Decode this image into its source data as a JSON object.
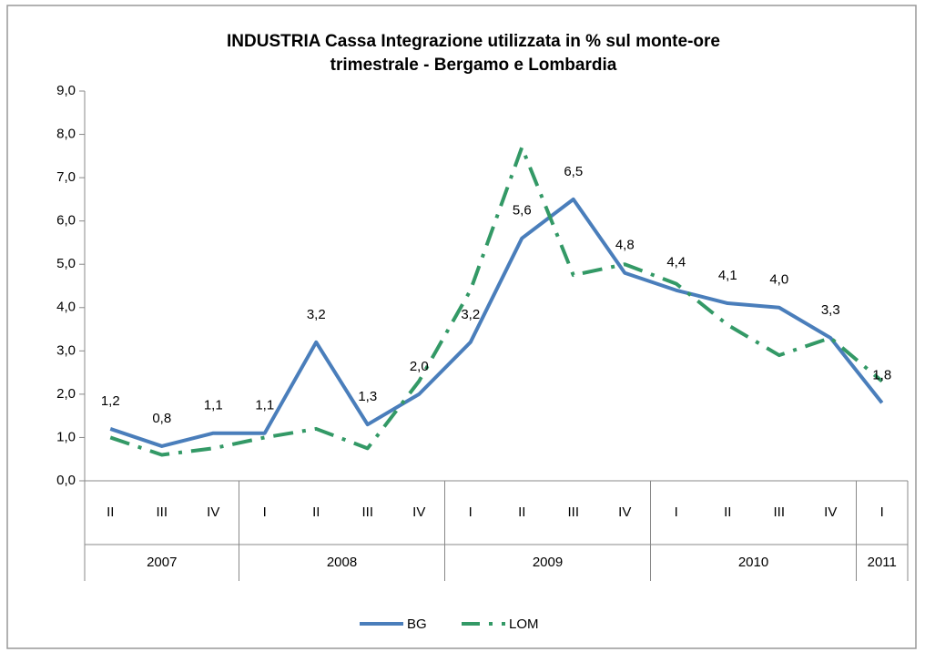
{
  "chart_data": {
    "type": "line",
    "title": [
      "INDUSTRIA  Cassa Integrazione utilizzata in % sul monte-ore",
      "trimestrale - Bergamo e Lombardia"
    ],
    "categories": [
      "II",
      "III",
      "IV",
      "I",
      "II",
      "III",
      "IV",
      "I",
      "II",
      "III",
      "IV",
      "I",
      "II",
      "III",
      "IV",
      "I"
    ],
    "year_groups": [
      {
        "label": "2007",
        "count": 3
      },
      {
        "label": "2008",
        "count": 4
      },
      {
        "label": "2009",
        "count": 4
      },
      {
        "label": "2010",
        "count": 4
      },
      {
        "label": "2011",
        "count": 1
      }
    ],
    "series": [
      {
        "name": "BG",
        "color": "#4a7ebb",
        "dash": "solid",
        "values": [
          1.2,
          0.8,
          1.1,
          1.1,
          3.2,
          1.3,
          2.0,
          3.2,
          5.6,
          6.5,
          4.8,
          4.4,
          4.1,
          4.0,
          3.3,
          1.8
        ],
        "value_labels": [
          "1,2",
          "0,8",
          "1,1",
          "1,1",
          "3,2",
          "1,3",
          "2,0",
          "3,2",
          "5,6",
          "6,5",
          "4,8",
          "4,4",
          "4,1",
          "4,0",
          "3,3",
          "1,8"
        ]
      },
      {
        "name": "LOM",
        "color": "#339966",
        "dash": "dashdot",
        "values": [
          1.0,
          0.6,
          0.75,
          1.0,
          1.2,
          0.75,
          2.3,
          4.4,
          7.7,
          4.75,
          5.0,
          4.55,
          3.6,
          2.9,
          3.3,
          2.3
        ]
      }
    ],
    "ylim": [
      0,
      9
    ],
    "yticks": [
      {
        "value": 0,
        "label": "0,0"
      },
      {
        "value": 1,
        "label": "1,0"
      },
      {
        "value": 2,
        "label": "2,0"
      },
      {
        "value": 3,
        "label": "3,0"
      },
      {
        "value": 4,
        "label": "4,0"
      },
      {
        "value": 5,
        "label": "5,0"
      },
      {
        "value": 6,
        "label": "6,0"
      },
      {
        "value": 7,
        "label": "7,0"
      },
      {
        "value": 8,
        "label": "8,0"
      },
      {
        "value": 9,
        "label": "9,0"
      }
    ],
    "legend": "bottom"
  }
}
